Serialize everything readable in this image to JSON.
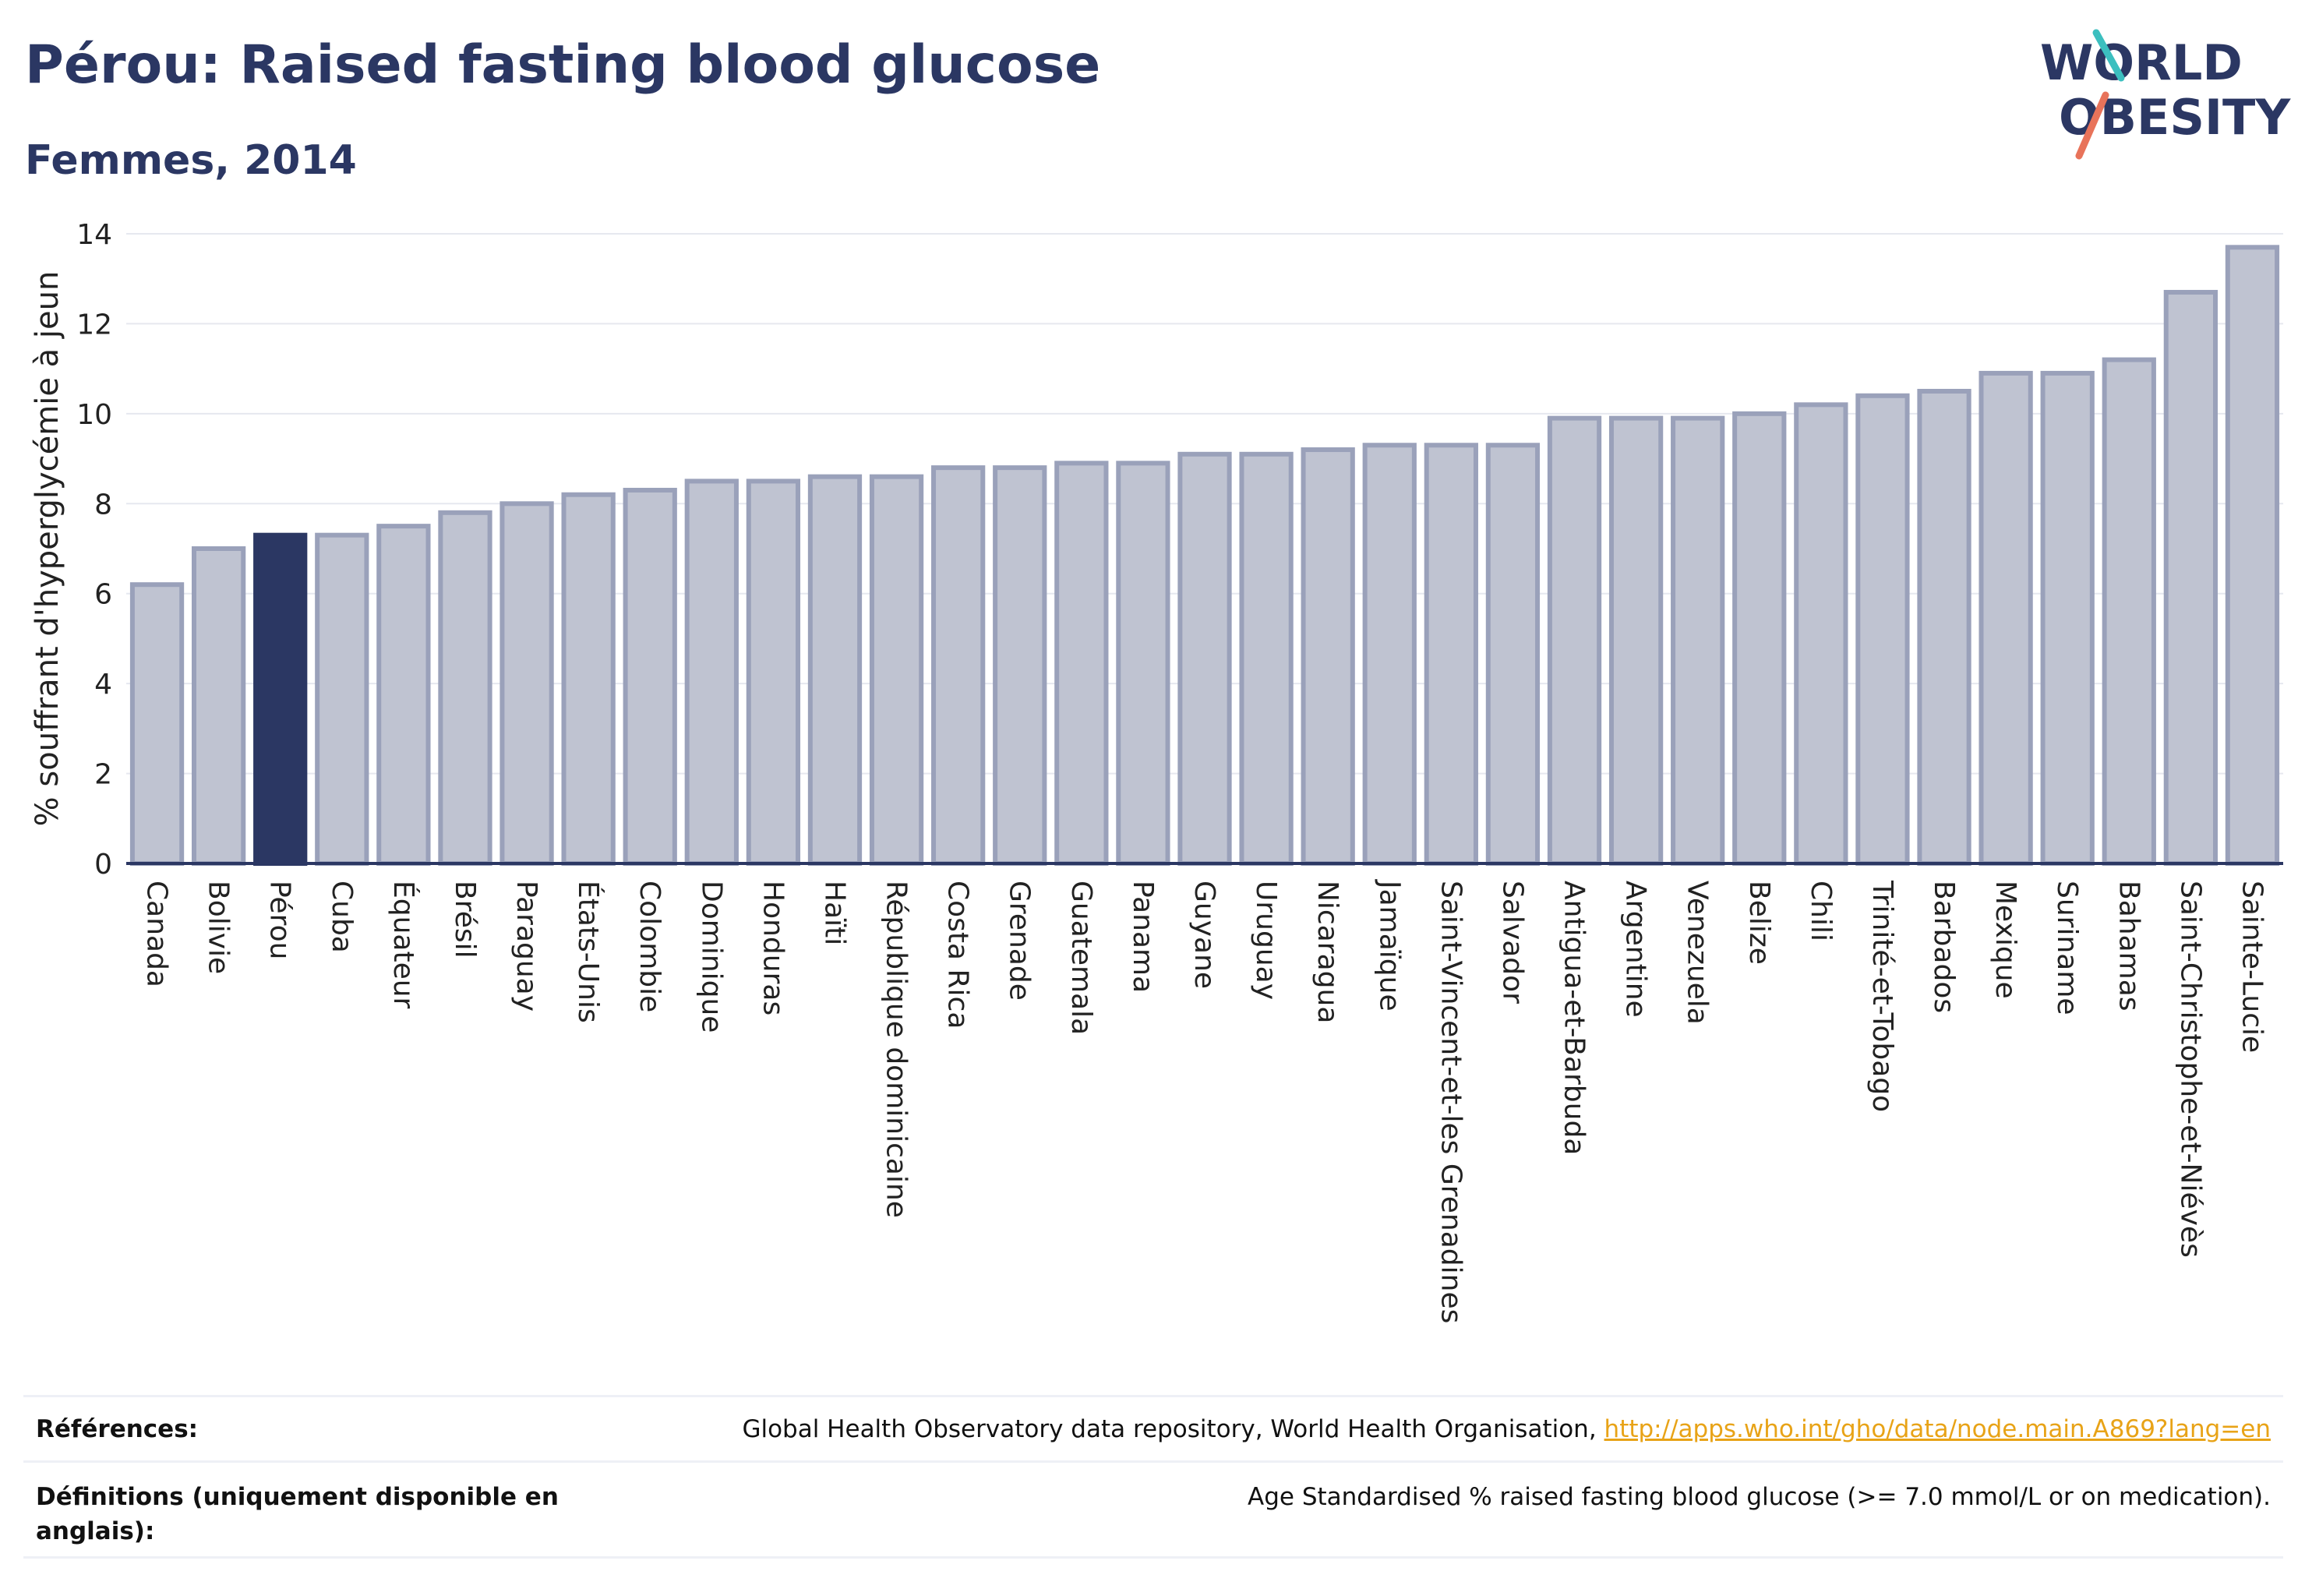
{
  "header": {
    "title": "Pérou: Raised fasting blood glucose",
    "subtitle": "Femmes, 2014"
  },
  "logo": {
    "line1": "WORLD",
    "line2": "OBESITY"
  },
  "colors": {
    "highlight": "#2b3763",
    "bar_fill": "#bfc3d1",
    "bar_stroke": "#9aa1ba",
    "accent_teal": "#3cbfbf",
    "accent_coral": "#e8735a",
    "link": "#e8a317"
  },
  "chart_data": {
    "type": "bar",
    "ylabel": "% souffrant d'hyperglycémie à jeun",
    "ylim": [
      0,
      14
    ],
    "yticks": [
      0,
      2,
      4,
      6,
      8,
      10,
      12,
      14
    ],
    "highlight": "Pérou",
    "categories": [
      "Canada",
      "Bolivie",
      "Pérou",
      "Cuba",
      "Équateur",
      "Brésil",
      "Paraguay",
      "États-Unis",
      "Colombie",
      "Dominique",
      "Honduras",
      "Haïti",
      "République dominicaine",
      "Costa Rica",
      "Grenade",
      "Guatemala",
      "Panama",
      "Guyane",
      "Uruguay",
      "Nicaragua",
      "Jamaïque",
      "Saint-Vincent-et-les Grenadines",
      "Salvador",
      "Antigua-et-Barbuda",
      "Argentine",
      "Venezuela",
      "Belize",
      "Chili",
      "Trinité-et-Tobago",
      "Barbados",
      "Mexique",
      "Suriname",
      "Bahamas",
      "Saint-Christophe-et-Niévès",
      "Sainte-Lucie"
    ],
    "values": [
      6.2,
      7.0,
      7.3,
      7.3,
      7.5,
      7.8,
      8.0,
      8.2,
      8.3,
      8.5,
      8.5,
      8.6,
      8.6,
      8.8,
      8.8,
      8.9,
      8.9,
      9.1,
      9.1,
      9.2,
      9.3,
      9.3,
      9.3,
      9.9,
      9.9,
      9.9,
      10.0,
      10.2,
      10.4,
      10.5,
      10.9,
      10.9,
      11.2,
      12.7,
      13.7
    ],
    "grid": true
  },
  "references": {
    "label": "Références:",
    "text": "Global Health Observatory data repository, World Health Organisation, ",
    "link": "http://apps.who.int/gho/data/node.main.A869?lang=en"
  },
  "definitions": {
    "label": "Définitions (uniquement disponible en anglais):",
    "text": "Age Standardised % raised fasting blood glucose (>= 7.0 mmol/L or on medication)."
  }
}
